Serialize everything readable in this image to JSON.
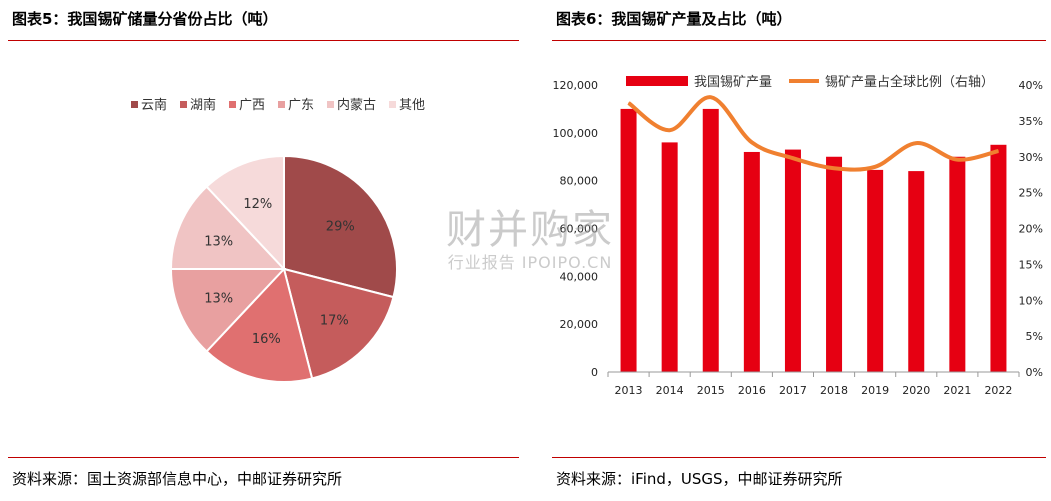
{
  "left_panel": {
    "title": "图表5：我国锡矿储量分省份占比（吨）",
    "source": "资料来源：国土资源部信息中心，中邮证券研究所"
  },
  "right_panel": {
    "title": "图表6：我国锡矿产量及占比（吨）",
    "source": "资料来源：iFind，USGS，中邮证券研究所"
  },
  "watermark": {
    "main": "财并购家",
    "sub": "行业报告 IPOIPO.CN"
  },
  "chart_data": [
    {
      "type": "pie",
      "title": "",
      "categories": [
        "云南",
        "湖南",
        "广西",
        "广东",
        "内蒙古",
        "其他"
      ],
      "values": [
        29,
        17,
        16,
        13,
        13,
        12
      ],
      "labels": [
        "29%",
        "17%",
        "16%",
        "13%",
        "13%",
        "12%"
      ],
      "colors": [
        "#a04a4a",
        "#c55c5c",
        "#e07070",
        "#e8a0a0",
        "#f0c4c4",
        "#f6dada"
      ],
      "legend_position": "top"
    },
    {
      "type": "bar",
      "title": "",
      "categories": [
        "2013",
        "2014",
        "2015",
        "2016",
        "2017",
        "2018",
        "2019",
        "2020",
        "2021",
        "2022"
      ],
      "series": [
        {
          "name": "我国锡矿产量",
          "type": "bar",
          "axis": "left",
          "color": "#e60012",
          "values": [
            110000,
            96000,
            110000,
            92000,
            93000,
            90000,
            84500,
            84000,
            90000,
            95000
          ]
        },
        {
          "name": "锡矿产量占全球比例（右轴）",
          "type": "line",
          "axis": "right",
          "color": "#f08030",
          "values": [
            37.5,
            33.7,
            38.3,
            32.0,
            29.8,
            28.4,
            28.6,
            31.9,
            29.6,
            30.8
          ]
        }
      ],
      "ylim": [
        0,
        120000
      ],
      "y_ticks": [
        "0",
        "20,000",
        "40,000",
        "60,000",
        "80,000",
        "100,000",
        "120,000"
      ],
      "y2lim": [
        0,
        40
      ],
      "y2_ticks": [
        "0%",
        "5%",
        "10%",
        "15%",
        "20%",
        "25%",
        "30%",
        "35%",
        "40%"
      ],
      "legend_position": "top",
      "grid": false
    }
  ]
}
